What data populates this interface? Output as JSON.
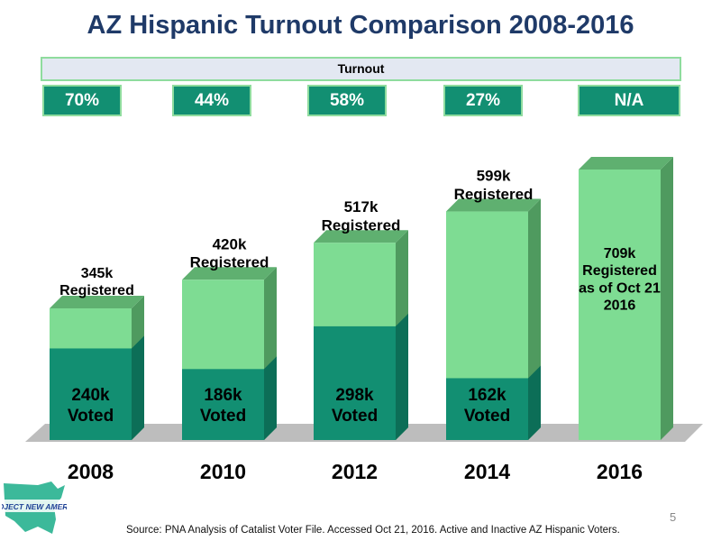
{
  "title": "AZ Hispanic Turnout Comparison 2008-2016",
  "turnout": {
    "label": "Turnout",
    "values": [
      "70%",
      "44%",
      "58%",
      "27%",
      "N/A"
    ]
  },
  "chart_data": {
    "type": "bar",
    "stacked": true,
    "categories": [
      "2008",
      "2010",
      "2012",
      "2014",
      "2016"
    ],
    "series": [
      {
        "name": "Voted",
        "values": [
          240,
          186,
          298,
          162,
          null
        ],
        "labels": [
          "240k Voted",
          "186k Voted",
          "298k Voted",
          "162k Voted",
          ""
        ]
      },
      {
        "name": "Registered",
        "values": [
          345,
          420,
          517,
          599,
          709
        ],
        "labels": [
          "345k Registered",
          "420k Registered",
          "517k Registered",
          "599k Registered",
          "709k Registered as of Oct 21 2016"
        ]
      }
    ],
    "unit": "k",
    "colors": {
      "voted": "#128f72",
      "registered": "#7edc93",
      "side": "#4f9a5f",
      "floor": "#bdbdbd"
    }
  },
  "logo_text": "PROJECT NEW AMERICA",
  "source": "Source: PNA Analysis of Catalist Voter File. Accessed Oct 21, 2016. Active and Inactive AZ Hispanic Voters.",
  "page_number": "5"
}
